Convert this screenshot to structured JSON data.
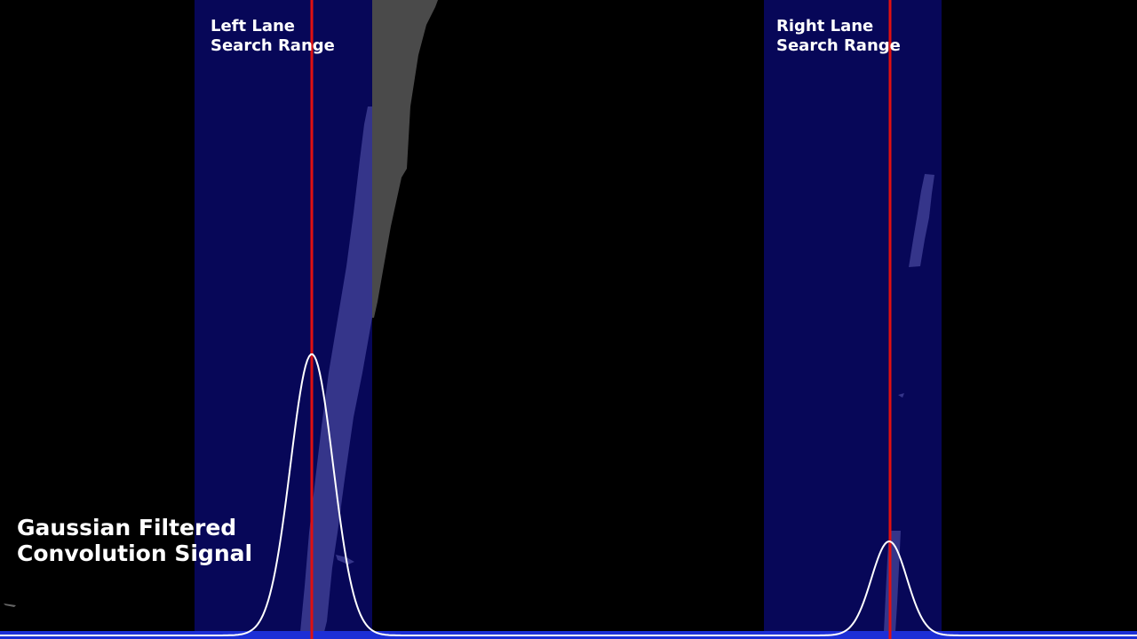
{
  "labels": {
    "left_range_line1": "Left Lane",
    "left_range_line2": "Search Range",
    "right_range_line1": "Right Lane",
    "right_range_line2": "Search Range",
    "signal_line1": "Gaussian Filtered",
    "signal_line2": "Convolution Signal"
  },
  "colors": {
    "background": "#000000",
    "search_range": "#070758",
    "lane_pixels_in_range": "#35358a",
    "lane_pixels_outside": "#4a4a4a",
    "center_line": "#e01010",
    "signal_curve": "#ffffff",
    "baseline_band": "#1c2fd6"
  },
  "icons": []
}
